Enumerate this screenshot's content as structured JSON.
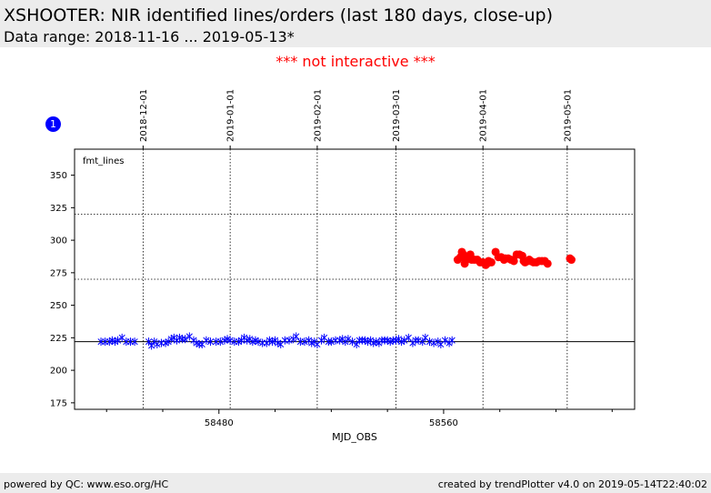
{
  "header": {
    "title": "XSHOOTER: NIR identified lines/orders (last 180 days, close-up)",
    "subtitle": "Data range: 2018-11-16 ... 2019-05-13*"
  },
  "notice": {
    "text": "*** not interactive ***",
    "color": "#ff0000"
  },
  "badge": {
    "label": "1",
    "color": "#0000ff"
  },
  "footer": {
    "left": "powered by QC: www.eso.org/HC",
    "right": "created by trendPlotter v4.0 on 2019-05-14T22:40:02"
  },
  "chart_data": {
    "type": "scatter",
    "title": "",
    "xlabel": "MJD_OBS",
    "ylabel": "",
    "xlim": [
      58428.6,
      58628.0
    ],
    "ylim": [
      170,
      370
    ],
    "grid": false,
    "x_ticks": [
      58480,
      58560
    ],
    "x_minor_ticks": [
      58440,
      58460,
      58500,
      58520,
      58540,
      58580,
      58600,
      58620
    ],
    "y_ticks": [
      175,
      200,
      225,
      250,
      275,
      300,
      325,
      350
    ],
    "date_ticks": [
      {
        "mjd": 58453,
        "label": "2018-12-01"
      },
      {
        "mjd": 58484,
        "label": "2019-01-01"
      },
      {
        "mjd": 58515,
        "label": "2019-02-01"
      },
      {
        "mjd": 58543,
        "label": "2019-03-01"
      },
      {
        "mjd": 58574,
        "label": "2019-04-01"
      },
      {
        "mjd": 58604,
        "label": "2019-05-01"
      }
    ],
    "legend_label": "fmt_lines",
    "legend_position": "top-left",
    "reference_lines": [
      {
        "y": 222,
        "style": "solid",
        "color": "#000000"
      },
      {
        "y": 270,
        "style": "dotted",
        "color": "#000000"
      },
      {
        "y": 320,
        "style": "dotted",
        "color": "#000000"
      }
    ],
    "series": [
      {
        "marker": "star",
        "color": "#0000ff",
        "points": [
          [
            58438,
            222
          ],
          [
            58439.5,
            222
          ],
          [
            58441,
            222
          ],
          [
            58442,
            223
          ],
          [
            58443,
            222
          ],
          [
            58444,
            223
          ],
          [
            58445.5,
            225
          ],
          [
            58447,
            222
          ],
          [
            58448.5,
            222
          ],
          [
            58450,
            222
          ],
          [
            58455,
            222
          ],
          [
            58456,
            219
          ],
          [
            58457,
            222
          ],
          [
            58458,
            220
          ],
          [
            58459.5,
            221
          ],
          [
            58461,
            221
          ],
          [
            58462,
            222
          ],
          [
            58463,
            224
          ],
          [
            58464,
            225
          ],
          [
            58465,
            223
          ],
          [
            58466,
            225
          ],
          [
            58467,
            224
          ],
          [
            58468,
            224
          ],
          [
            58469.5,
            226
          ],
          [
            58471,
            223
          ],
          [
            58472,
            221
          ],
          [
            58473,
            220
          ],
          [
            58474,
            220
          ],
          [
            58475.5,
            223
          ],
          [
            58477,
            222
          ],
          [
            58479,
            222
          ],
          [
            58480.5,
            222
          ],
          [
            58482,
            223
          ],
          [
            58483,
            224
          ],
          [
            58484,
            223
          ],
          [
            58485.5,
            222
          ],
          [
            58487,
            222
          ],
          [
            58488,
            223
          ],
          [
            58489,
            225
          ],
          [
            58490,
            223
          ],
          [
            58491,
            224
          ],
          [
            58492,
            222
          ],
          [
            58493,
            223
          ],
          [
            58494,
            222
          ],
          [
            58495.5,
            221
          ],
          [
            58497,
            221
          ],
          [
            58498,
            223
          ],
          [
            58499,
            222
          ],
          [
            58500,
            223
          ],
          [
            58501,
            221
          ],
          [
            58502,
            220
          ],
          [
            58503.5,
            223
          ],
          [
            58505,
            223
          ],
          [
            58506.5,
            224
          ],
          [
            58507.5,
            226
          ],
          [
            58509,
            222
          ],
          [
            58510.5,
            222
          ],
          [
            58512,
            223
          ],
          [
            58513,
            221
          ],
          [
            58514,
            222
          ],
          [
            58515,
            220
          ],
          [
            58516.5,
            223
          ],
          [
            58517.5,
            225
          ],
          [
            58519,
            222
          ],
          [
            58520,
            222
          ],
          [
            58521.5,
            223
          ],
          [
            58523,
            223
          ],
          [
            58524,
            224
          ],
          [
            58525,
            222
          ],
          [
            58526,
            224
          ],
          [
            58527.5,
            222
          ],
          [
            58529,
            220
          ],
          [
            58530,
            223
          ],
          [
            58531,
            223
          ],
          [
            58532,
            223
          ],
          [
            58533,
            222
          ],
          [
            58534,
            223
          ],
          [
            58535,
            221
          ],
          [
            58536,
            222
          ],
          [
            58537,
            221
          ],
          [
            58538,
            223
          ],
          [
            58539,
            223
          ],
          [
            58540,
            223
          ],
          [
            58541,
            222
          ],
          [
            58542,
            223
          ],
          [
            58543,
            223
          ],
          [
            58544,
            224
          ],
          [
            58545,
            222
          ],
          [
            58546,
            223
          ],
          [
            58547.5,
            225
          ],
          [
            58549,
            221
          ],
          [
            58550,
            223
          ],
          [
            58551,
            223
          ],
          [
            58552.5,
            222
          ],
          [
            58553.5,
            225
          ],
          [
            58555,
            222
          ],
          [
            58556.5,
            221
          ],
          [
            58558,
            222
          ],
          [
            58559,
            220
          ],
          [
            58560.5,
            223
          ],
          [
            58562,
            221
          ],
          [
            58563,
            223
          ]
        ]
      },
      {
        "marker": "circle",
        "color": "#ff0000",
        "points": [
          [
            58565,
            285
          ],
          [
            58566,
            287
          ],
          [
            58566.5,
            291
          ],
          [
            58567,
            289
          ],
          [
            58567.5,
            282
          ],
          [
            58568,
            285
          ],
          [
            58569,
            286
          ],
          [
            58569.5,
            289
          ],
          [
            58570,
            285
          ],
          [
            58571,
            285
          ],
          [
            58572,
            285
          ],
          [
            58573,
            283
          ],
          [
            58574,
            283
          ],
          [
            58575,
            281
          ],
          [
            58575.5,
            282
          ],
          [
            58576,
            284
          ],
          [
            58577,
            283
          ],
          [
            58578.5,
            291
          ],
          [
            58579.5,
            287
          ],
          [
            58580.5,
            287
          ],
          [
            58581.5,
            285
          ],
          [
            58582,
            286
          ],
          [
            58583,
            286
          ],
          [
            58584,
            285
          ],
          [
            58585,
            284
          ],
          [
            58586,
            289
          ],
          [
            58587,
            289
          ],
          [
            58588,
            288
          ],
          [
            58588.5,
            284
          ],
          [
            58589,
            283
          ],
          [
            58590,
            284
          ],
          [
            58590.5,
            285
          ],
          [
            58591,
            284
          ],
          [
            58592,
            283
          ],
          [
            58593,
            283
          ],
          [
            58594,
            284
          ],
          [
            58595,
            284
          ],
          [
            58596,
            284
          ],
          [
            58597,
            282
          ],
          [
            58605,
            286
          ],
          [
            58605.5,
            285
          ]
        ]
      }
    ]
  }
}
